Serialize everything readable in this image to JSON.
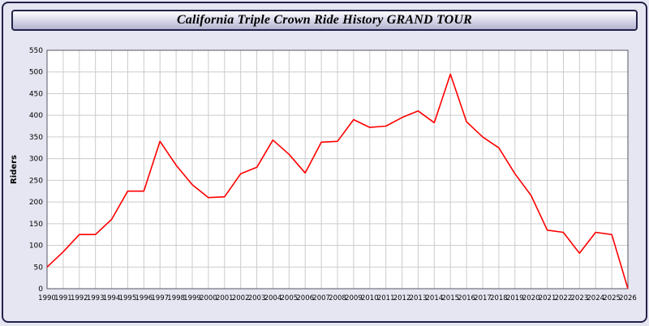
{
  "window": {
    "title": "California Triple Crown Ride History GRAND TOUR"
  },
  "chart_data": {
    "type": "line",
    "title": "California Triple Crown Ride History GRAND TOUR",
    "xlabel": "",
    "ylabel": "Riders",
    "ylim": [
      0,
      550
    ],
    "ytick_step": 50,
    "grid": true,
    "line_color": "#ff0000",
    "plot_background": "#ffffff",
    "x": [
      1990,
      1991,
      1992,
      1993,
      1994,
      1995,
      1996,
      1997,
      1998,
      1999,
      2000,
      2001,
      2002,
      2003,
      2004,
      2005,
      2006,
      2007,
      2008,
      2009,
      2010,
      2011,
      2012,
      2013,
      2014,
      2015,
      2016,
      2017,
      2018,
      2019,
      2020,
      2021,
      2022,
      2023,
      2024,
      2025,
      2026
    ],
    "series": [
      {
        "name": "Riders",
        "values": [
          50,
          85,
          125,
          125,
          160,
          225,
          225,
          340,
          285,
          240,
          210,
          212,
          265,
          280,
          343,
          310,
          267,
          338,
          340,
          390,
          372,
          375,
          395,
          410,
          383,
          495,
          385,
          350,
          325,
          265,
          215,
          135,
          130,
          82,
          130,
          125,
          0
        ]
      }
    ]
  }
}
